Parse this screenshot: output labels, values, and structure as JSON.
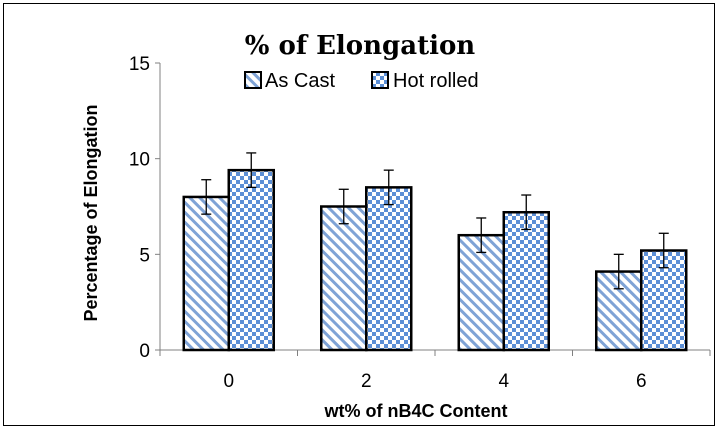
{
  "chart_data": {
    "type": "bar",
    "title": "% of Elongation",
    "xlabel": "wt% of nB4C Content",
    "ylabel": "Percentage of Elongation",
    "categories": [
      "0",
      "2",
      "4",
      "6"
    ],
    "yticks": [
      "0",
      "5",
      "10",
      "15"
    ],
    "ylim": [
      0,
      15
    ],
    "grid": false,
    "legend_position": "top",
    "series": [
      {
        "name": "As Cast",
        "values": [
          8.0,
          7.5,
          6.0,
          4.1
        ],
        "errors": [
          0.9,
          0.9,
          0.9,
          0.9
        ],
        "pattern": "diagonal-stripes",
        "color": "#7fa3d6"
      },
      {
        "name": "Hot rolled",
        "values": [
          9.4,
          8.5,
          7.2,
          5.2
        ],
        "errors": [
          0.9,
          0.9,
          0.9,
          0.9
        ],
        "pattern": "checkerboard",
        "color": "#5c8fd6"
      }
    ]
  }
}
